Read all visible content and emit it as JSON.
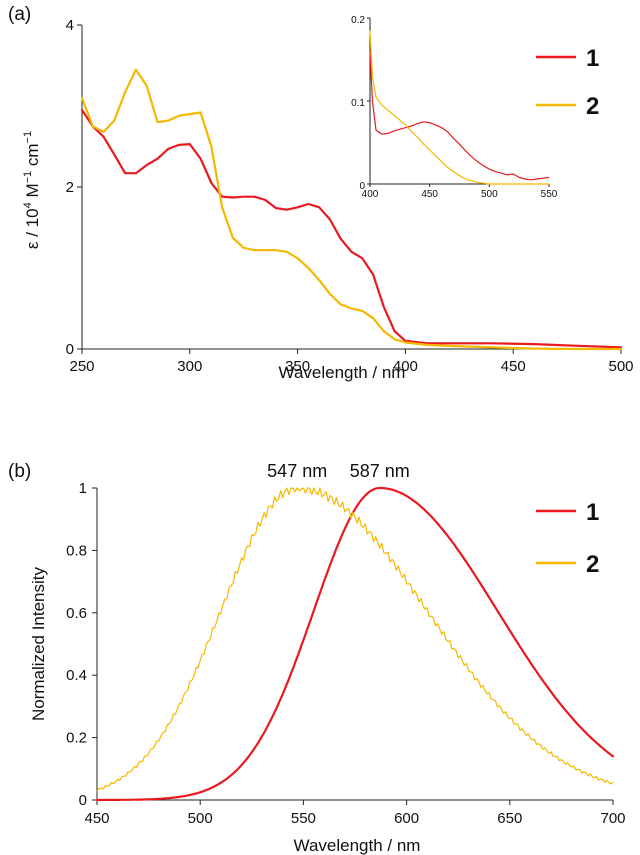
{
  "chart_data": [
    {
      "type": "line",
      "panel_label": "(a)",
      "xlabel": "Wavelength / nm",
      "ylabel": {
        "prefix": "ε / 10",
        "exp1": "4",
        "mid": " M",
        "exp2": "−1",
        "mid2": " cm",
        "exp3": "−1"
      },
      "xlim": [
        250,
        500
      ],
      "ylim": [
        0,
        4
      ],
      "xticks": [
        "250",
        "300",
        "350",
        "400",
        "450",
        "500"
      ],
      "yticks": [
        "0",
        "2",
        "4"
      ],
      "legend": {
        "position": "top-right",
        "entries": [
          "1",
          "2"
        ]
      },
      "series": [
        {
          "name": "1",
          "color": "#e8191f",
          "x": [
            250,
            255,
            260,
            265,
            270,
            275,
            280,
            285,
            290,
            295,
            300,
            305,
            310,
            315,
            320,
            325,
            330,
            335,
            340,
            345,
            350,
            355,
            360,
            365,
            370,
            375,
            380,
            385,
            390,
            395,
            400,
            410,
            420,
            440,
            460,
            480,
            500
          ],
          "y": [
            2.95,
            2.75,
            2.62,
            2.4,
            2.17,
            2.17,
            2.27,
            2.35,
            2.47,
            2.52,
            2.53,
            2.35,
            2.05,
            1.88,
            1.87,
            1.88,
            1.88,
            1.84,
            1.74,
            1.72,
            1.75,
            1.79,
            1.75,
            1.6,
            1.36,
            1.2,
            1.12,
            0.92,
            0.52,
            0.22,
            0.1,
            0.07,
            0.07,
            0.07,
            0.06,
            0.04,
            0.02
          ]
        },
        {
          "name": "2",
          "color": "#f5b800",
          "x": [
            250,
            255,
            260,
            265,
            270,
            275,
            280,
            285,
            290,
            295,
            300,
            305,
            310,
            315,
            320,
            325,
            330,
            335,
            340,
            345,
            350,
            355,
            360,
            365,
            370,
            375,
            380,
            385,
            390,
            395,
            400,
            410,
            420,
            440,
            460,
            480,
            500
          ],
          "y": [
            3.1,
            2.75,
            2.68,
            2.82,
            3.17,
            3.45,
            3.25,
            2.8,
            2.82,
            2.88,
            2.9,
            2.92,
            2.5,
            1.75,
            1.37,
            1.25,
            1.22,
            1.22,
            1.22,
            1.2,
            1.12,
            1.0,
            0.85,
            0.68,
            0.55,
            0.5,
            0.47,
            0.38,
            0.22,
            0.12,
            0.08,
            0.05,
            0.04,
            0.02,
            0.005,
            0.0,
            0.0
          ]
        }
      ],
      "inset": {
        "xlim": [
          400,
          550
        ],
        "ylim": [
          0,
          0.2
        ],
        "xticks": [
          "400",
          "450",
          "500",
          "550"
        ],
        "yticks": [
          "0",
          "0.1",
          "0.2"
        ],
        "series": [
          {
            "name": "1",
            "x": [
              400,
              402,
              405,
              410,
              415,
              420,
              425,
              430,
              435,
              440,
              445,
              450,
              455,
              460,
              465,
              470,
              475,
              480,
              485,
              490,
              495,
              500,
              505,
              510,
              515,
              520,
              525,
              530,
              535,
              540,
              545,
              550
            ],
            "y": [
              0.16,
              0.1,
              0.065,
              0.06,
              0.061,
              0.064,
              0.066,
              0.068,
              0.07,
              0.073,
              0.075,
              0.074,
              0.071,
              0.068,
              0.063,
              0.055,
              0.048,
              0.04,
              0.033,
              0.027,
              0.022,
              0.018,
              0.015,
              0.013,
              0.011,
              0.012,
              0.008,
              0.006,
              0.005,
              0.006,
              0.007,
              0.008
            ]
          },
          {
            "name": "2",
            "x": [
              400,
              402,
              405,
              410,
              415,
              420,
              425,
              430,
              435,
              440,
              445,
              450,
              455,
              460,
              465,
              470,
              475,
              480,
              485,
              490,
              495,
              500,
              510,
              520,
              530,
              540,
              550
            ],
            "y": [
              0.185,
              0.13,
              0.105,
              0.095,
              0.089,
              0.083,
              0.077,
              0.071,
              0.063,
              0.056,
              0.048,
              0.041,
              0.034,
              0.027,
              0.02,
              0.015,
              0.01,
              0.006,
              0.004,
              0.002,
              0.001,
              0.0,
              0.0,
              0.0,
              0.0,
              0.0,
              0.0
            ]
          }
        ]
      }
    },
    {
      "type": "line",
      "panel_label": "(b)",
      "xlabel": "Wavelength / nm",
      "ylabel": "Normalized Intensity",
      "xlim": [
        450,
        700
      ],
      "ylim": [
        0,
        1
      ],
      "xticks": [
        "450",
        "500",
        "550",
        "600",
        "650",
        "700"
      ],
      "yticks": [
        "0",
        "0.2",
        "0.4",
        "0.6",
        "0.8",
        "1"
      ],
      "legend": {
        "position": "top-right",
        "entries": [
          "1",
          "2"
        ]
      },
      "annotations": [
        {
          "text": "547 nm",
          "x": 547
        },
        {
          "text": "587 nm",
          "x": 587
        }
      ],
      "series": [
        {
          "name": "1",
          "color": "#e8191f",
          "peak": 587,
          "sigma_left": 32,
          "sigma_right": 57
        },
        {
          "name": "2",
          "color": "#f5b800",
          "peak": 547,
          "sigma_left": 37,
          "sigma_right": 63
        }
      ]
    }
  ]
}
